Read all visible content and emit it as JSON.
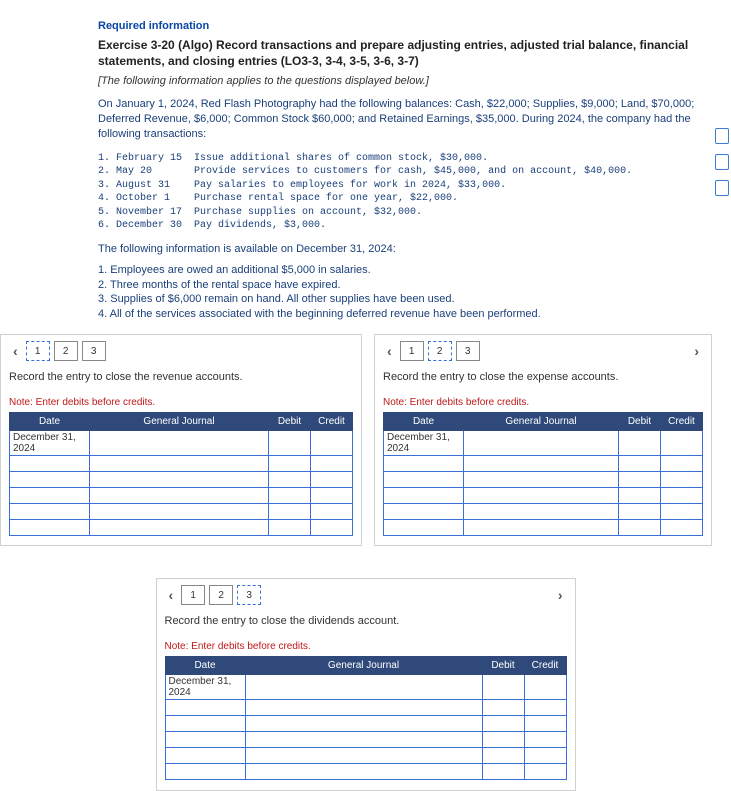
{
  "header": {
    "required": "Required information",
    "title": "Exercise 3-20 (Algo) Record transactions and prepare adjusting entries, adjusted trial balance, financial statements, and closing entries (LO3-3, 3-4, 3-5, 3-6, 3-7)",
    "applies": "[The following information applies to the questions displayed below.]",
    "intro": "On January 1, 2024, Red Flash Photography had the following balances: Cash, $22,000; Supplies, $9,000; Land, $70,000; Deferred Revenue, $6,000; Common Stock $60,000; and Retained Earnings, $35,000. During 2024, the company had the following transactions:",
    "txns": "1. February 15  Issue additional shares of common stock, $30,000.\n2. May 20       Provide services to customers for cash, $45,000, and on account, $40,000.\n3. August 31    Pay salaries to employees for work in 2024, $33,000.\n4. October 1    Purchase rental space for one year, $22,000.\n5. November 17  Purchase supplies on account, $32,000.\n6. December 30  Pay dividends, $3,000.",
    "avail": "The following information is available on December 31, 2024:",
    "adj": "1. Employees are owed an additional $5,000 in salaries.\n2. Three months of the rental space have expired.\n3. Supplies of $6,000 remain on hand. All other supplies have been used.\n4. All of the services associated with the beginning deferred revenue have been performed."
  },
  "tabs": {
    "t1": "1",
    "t2": "2",
    "t3": "3"
  },
  "revenue": {
    "prompt": "Record the entry to close the revenue accounts.",
    "note": "Note: Enter debits before credits.",
    "date": "December 31, 2024"
  },
  "expense": {
    "prompt": "Record the entry to close the expense accounts.",
    "note": "Note: Enter debits before credits.",
    "date": "December 31, 2024"
  },
  "dividends": {
    "prompt": "Record the entry to close the dividends account.",
    "note": "Note: Enter debits before credits.",
    "date": "December 31, 2024"
  },
  "cols": {
    "date": "Date",
    "gj": "General Journal",
    "debit": "Debit",
    "credit": "Credit"
  }
}
